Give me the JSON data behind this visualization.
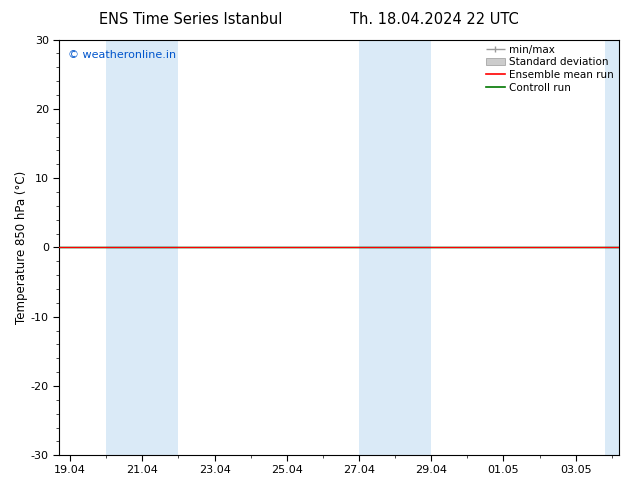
{
  "title_left": "ENS Time Series Istanbul",
  "title_right": "Th. 18.04.2024 22 UTC",
  "ylabel": "Temperature 850 hPa (°C)",
  "ylim": [
    -30,
    30
  ],
  "yticks": [
    -30,
    -20,
    -10,
    0,
    10,
    20,
    30
  ],
  "xtick_labels": [
    "19.04",
    "21.04",
    "23.04",
    "25.04",
    "27.04",
    "29.04",
    "01.05",
    "03.05"
  ],
  "watermark": "© weatheronline.in",
  "watermark_color": "#0055cc",
  "background_color": "#ffffff",
  "plot_bg_color": "#ffffff",
  "shaded_color": "#daeaf7",
  "zero_line_color": "#000000",
  "control_run_color": "#007700",
  "ensemble_mean_color": "#ff0000",
  "title_fontsize": 10.5,
  "axis_fontsize": 8.5,
  "tick_fontsize": 8,
  "legend_fontsize": 7.5
}
